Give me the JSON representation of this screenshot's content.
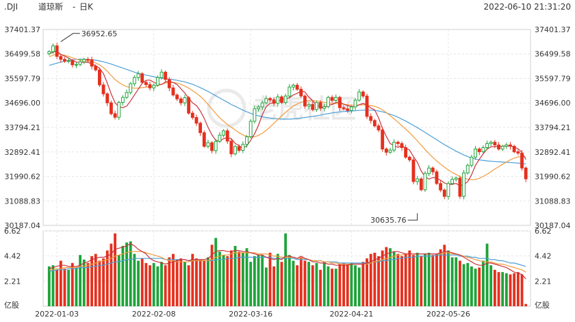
{
  "header": {
    "symbol": ".DJI",
    "name": "道琼斯",
    "period": "日K",
    "datetime": "2022-06-10 21:31:20"
  },
  "watermark": "老虎社区",
  "colors": {
    "up": "#1fa33a",
    "down": "#e5301e",
    "ma_short": "#c8323c",
    "ma_mid": "#f29a3a",
    "ma_long": "#4a9fd8"
  },
  "chart_data": {
    "type": "candlestick",
    "price_axis": {
      "ticks": [
        "37401.37",
        "36499.58",
        "35597.79",
        "34696.00",
        "33794.21",
        "32892.41",
        "31990.62",
        "31088.83",
        "30187.04"
      ],
      "min": 30187.04,
      "max": 37401.37
    },
    "volume_axis": {
      "ticks": [
        "6.62",
        "4.42",
        "2.21"
      ],
      "unit": "亿股",
      "min": 0,
      "max": 6.62
    },
    "x_ticks": [
      "2022-01-03",
      "2022-02-08",
      "2022-03-16",
      "2022-04-21",
      "2022-05-26"
    ],
    "annotations": [
      {
        "label": "36952.65",
        "index": 3,
        "value": 36952.65,
        "kind": "high"
      },
      {
        "label": "30635.76",
        "index": 95,
        "value": 30635.76,
        "kind": "low"
      }
    ],
    "close": [
      36585,
      36799,
      36410,
      36300,
      36230,
      36250,
      36100,
      36110,
      36210,
      36300,
      36290,
      36050,
      35911,
      35360,
      35030,
      34700,
      34300,
      34168,
      34717,
      34900,
      35080,
      35405,
      35630,
      35770,
      35455,
      35370,
      35250,
      35350,
      35630,
      35830,
      35560,
      35250,
      34988,
      34845,
      34700,
      34890,
      34320,
      34160,
      33950,
      33600,
      33100,
      33230,
      32940,
      33280,
      33510,
      33670,
      33290,
      32820,
      33090,
      32950,
      33170,
      33450,
      34020,
      34480,
      34550,
      34700,
      34860,
      34810,
      34680,
      34920,
      34710,
      34950,
      35280,
      35350,
      35200,
      34950,
      34580,
      34640,
      34450,
      34710,
      34500,
      34560,
      34900,
      34790,
      34900,
      34520,
      34480,
      34420,
      34550,
      34800,
      35100,
      34950,
      34200,
      34050,
      33850,
      33700,
      33000,
      32880,
      32960,
      33250,
      33200,
      33050,
      32700,
      32600,
      31800,
      31900,
      31500,
      32100,
      32300,
      32160,
      31730,
      31490,
      31253,
      31730,
      31880,
      31930,
      31260,
      32120,
      32400,
      32700,
      33000,
      32900,
      33050,
      33200,
      33250,
      33150,
      33000,
      33100,
      33150,
      33100,
      32900,
      32850,
      32300,
      31900
    ],
    "ma_short": [
      36500,
      36570,
      36600,
      36480,
      36420,
      36350,
      36260,
      36200,
      36185,
      36200,
      36190,
      36140,
      36070,
      35970,
      35780,
      35420,
      35030,
      34700,
      34560,
      34520,
      34580,
      34770,
      34990,
      35200,
      35420,
      35530,
      35540,
      35460,
      35390,
      35370,
      35470,
      35490,
      35450,
      35370,
      35220,
      35060,
      34870,
      34700,
      34600,
      34400,
      34130,
      33800,
      33520,
      33320,
      33280,
      33380,
      33420,
      33380,
      33210,
      33120,
      33030,
      33120,
      33320,
      33560,
      33870,
      34260,
      34560,
      34680,
      34700,
      34750,
      34820,
      34840,
      34890,
      34990,
      35050,
      35130,
      35100,
      34910,
      34780,
      34600,
      34560,
      34510,
      34610,
      34640,
      34710,
      34730,
      34650,
      34600,
      34560,
      34560,
      34630,
      34680,
      34620,
      34510,
      34440,
      34150,
      33760,
      33460,
      33200,
      33130,
      33060,
      33120,
      33040,
      32960,
      32720,
      32510,
      32190,
      31980,
      31890,
      31950,
      31930,
      31850,
      31750,
      31690,
      31700,
      31730,
      31650,
      31690,
      31800,
      32050,
      32400,
      32620,
      32820,
      33000,
      33080,
      33090,
      33100,
      33100,
      33120,
      33110,
      33070,
      33010,
      32880,
      32610
    ],
    "ma_mid": [
      36400,
      36450,
      36500,
      36480,
      36450,
      36410,
      36360,
      36310,
      36270,
      36250,
      36240,
      36210,
      36170,
      36100,
      36000,
      35860,
      35710,
      35560,
      35450,
      35360,
      35300,
      35260,
      35240,
      35240,
      35260,
      35280,
      35290,
      35310,
      35340,
      35380,
      35430,
      35450,
      35450,
      35430,
      35380,
      35320,
      35240,
      35150,
      35050,
      34940,
      34800,
      34640,
      34470,
      34300,
      34150,
      34020,
      33900,
      33800,
      33700,
      33600,
      33520,
      33460,
      33440,
      33450,
      33500,
      33580,
      33690,
      33810,
      33950,
      34080,
      34220,
      34350,
      34470,
      34580,
      34660,
      34720,
      34760,
      34780,
      34780,
      34770,
      34750,
      34720,
      34700,
      34680,
      34670,
      34660,
      34650,
      34630,
      34620,
      34610,
      34620,
      34630,
      34620,
      34600,
      34570,
      34520,
      34440,
      34340,
      34230,
      34110,
      33990,
      33860,
      33730,
      33600,
      33450,
      33300,
      33140,
      32980,
      32830,
      32690,
      32560,
      32440,
      32330,
      32230,
      32140,
      32060,
      31990,
      31930,
      31890,
      31870,
      31880,
      31920,
      31990,
      32070,
      32160,
      32260,
      32350,
      32440,
      32520,
      32600,
      32660,
      32710,
      32720,
      32700
    ],
    "ma_long": [
      36080,
      36120,
      36160,
      36200,
      36230,
      36260,
      36280,
      36300,
      36310,
      36310,
      36300,
      36290,
      36270,
      36240,
      36210,
      36170,
      36130,
      36080,
      36030,
      35980,
      35930,
      35880,
      35830,
      35790,
      35750,
      35720,
      35690,
      35660,
      35630,
      35610,
      35590,
      35570,
      35550,
      35530,
      35500,
      35470,
      35430,
      35380,
      35320,
      35260,
      35190,
      35120,
      35040,
      34960,
      34880,
      34800,
      34720,
      34640,
      34570,
      34500,
      34430,
      34370,
      34310,
      34260,
      34220,
      34190,
      34160,
      34140,
      34120,
      34110,
      34100,
      34100,
      34100,
      34110,
      34120,
      34140,
      34160,
      34180,
      34200,
      34220,
      34250,
      34280,
      34300,
      34330,
      34350,
      34370,
      34380,
      34390,
      34400,
      34410,
      34420,
      34430,
      34430,
      34430,
      34420,
      34400,
      34370,
      34330,
      34280,
      34230,
      34170,
      34100,
      34030,
      33950,
      33870,
      33790,
      33700,
      33610,
      33520,
      33430,
      33340,
      33250,
      33160,
      33080,
      33000,
      32920,
      32850,
      32780,
      32720,
      32670,
      32630,
      32600,
      32580,
      32560,
      32550,
      32540,
      32530,
      32520,
      32510,
      32500,
      32490,
      32480,
      32470,
      32450
    ],
    "volume": [
      3.5,
      3.6,
      3.2,
      4.0,
      3.3,
      3.2,
      3.8,
      3.4,
      4.5,
      4.1,
      3.8,
      4.4,
      4.6,
      4.0,
      4.2,
      4.9,
      5.5,
      6.4,
      4.5,
      5.3,
      5.6,
      5.7,
      4.6,
      4.0,
      4.2,
      3.8,
      3.6,
      3.8,
      3.5,
      3.9,
      3.6,
      4.3,
      4.6,
      4.1,
      4.2,
      3.9,
      3.6,
      4.6,
      4.2,
      4.1,
      4.0,
      4.3,
      5.4,
      6.0,
      4.8,
      4.5,
      4.4,
      4.9,
      5.3,
      4.8,
      4.7,
      5.1,
      3.9,
      4.4,
      4.5,
      4.5,
      3.4,
      4.7,
      3.5,
      4.6,
      3.9,
      6.4,
      4.5,
      4.0,
      3.6,
      4.3,
      4.0,
      3.9,
      3.6,
      3.8,
      3.2,
      3.9,
      3.5,
      3.3,
      3.3,
      3.7,
      3.8,
      3.7,
      3.8,
      3.6,
      3.4,
      3.9,
      4.2,
      4.6,
      4.7,
      4.4,
      4.9,
      5.2,
      5.1,
      4.8,
      4.6,
      4.4,
      4.6,
      4.9,
      4.5,
      4.7,
      4.4,
      4.6,
      4.7,
      4.5,
      4.6,
      5.0,
      5.4,
      4.9,
      4.3,
      4.3,
      4.0,
      3.7,
      3.8,
      3.5,
      3.3,
      3.4,
      4.0,
      5.5,
      3.6,
      3.2,
      3.0,
      3.0,
      2.9,
      2.8,
      2.9,
      3.0,
      2.8,
      0.2
    ],
    "vol_ma_short": [
      3.3,
      3.4,
      3.5,
      3.6,
      3.6,
      3.5,
      3.5,
      3.5,
      3.6,
      3.8,
      3.9,
      4.1,
      4.2,
      4.3,
      4.3,
      4.4,
      4.6,
      5.0,
      5.1,
      5.2,
      5.3,
      5.5,
      5.3,
      5.0,
      4.8,
      4.6,
      4.2,
      4.0,
      3.9,
      3.8,
      3.7,
      3.8,
      3.9,
      4.0,
      4.1,
      4.1,
      4.0,
      4.1,
      4.1,
      4.1,
      4.1,
      4.2,
      4.5,
      4.8,
      4.9,
      4.9,
      4.8,
      4.8,
      4.9,
      4.9,
      4.8,
      4.8,
      4.7,
      4.6,
      4.5,
      4.5,
      4.3,
      4.2,
      4.1,
      4.2,
      4.1,
      4.4,
      4.4,
      4.3,
      4.2,
      4.4,
      4.2,
      4.1,
      3.9,
      3.9,
      3.8,
      3.8,
      3.7,
      3.7,
      3.6,
      3.6,
      3.6,
      3.6,
      3.7,
      3.7,
      3.7,
      3.7,
      3.8,
      3.9,
      4.1,
      4.2,
      4.4,
      4.6,
      4.7,
      4.8,
      4.8,
      4.7,
      4.6,
      4.6,
      4.6,
      4.6,
      4.6,
      4.6,
      4.6,
      4.6,
      4.6,
      4.7,
      4.8,
      4.8,
      4.7,
      4.6,
      4.5,
      4.3,
      4.1,
      3.9,
      3.7,
      3.6,
      3.6,
      3.8,
      3.8,
      3.7,
      3.6,
      3.5,
      3.4,
      3.2,
      3.0,
      2.9,
      2.8,
      2.4
    ],
    "vol_ma_mid": [
      3.2,
      3.2,
      3.3,
      3.3,
      3.4,
      3.4,
      3.4,
      3.4,
      3.5,
      3.5,
      3.6,
      3.7,
      3.8,
      3.9,
      4.0,
      4.1,
      4.2,
      4.4,
      4.5,
      4.6,
      4.7,
      4.8,
      4.8,
      4.8,
      4.8,
      4.7,
      4.6,
      4.5,
      4.4,
      4.3,
      4.1,
      4.0,
      4.0,
      3.9,
      3.9,
      3.9,
      3.9,
      4.0,
      4.0,
      4.0,
      4.0,
      4.0,
      4.1,
      4.3,
      4.4,
      4.5,
      4.5,
      4.6,
      4.7,
      4.7,
      4.7,
      4.7,
      4.7,
      4.7,
      4.6,
      4.6,
      4.6,
      4.5,
      4.4,
      4.4,
      4.3,
      4.3,
      4.3,
      4.3,
      4.2,
      4.2,
      4.2,
      4.1,
      4.0,
      4.0,
      4.0,
      3.9,
      3.9,
      3.8,
      3.8,
      3.7,
      3.7,
      3.7,
      3.7,
      3.7,
      3.7,
      3.7,
      3.7,
      3.8,
      3.9,
      4.0,
      4.1,
      4.2,
      4.3,
      4.4,
      4.5,
      4.5,
      4.6,
      4.6,
      4.6,
      4.6,
      4.6,
      4.6,
      4.6,
      4.6,
      4.6,
      4.6,
      4.7,
      4.7,
      4.6,
      4.6,
      4.5,
      4.4,
      4.3,
      4.2,
      4.1,
      4.0,
      3.9,
      3.9,
      3.9,
      3.8,
      3.7,
      3.7,
      3.6,
      3.5,
      3.4,
      3.3,
      3.2,
      3.0
    ],
    "vol_ma_long": [
      3.1,
      3.1,
      3.2,
      3.2,
      3.2,
      3.3,
      3.3,
      3.3,
      3.4,
      3.4,
      3.4,
      3.5,
      3.5,
      3.6,
      3.6,
      3.7,
      3.8,
      3.9,
      3.9,
      4.0,
      4.1,
      4.1,
      4.2,
      4.2,
      4.2,
      4.2,
      4.2,
      4.2,
      4.2,
      4.2,
      4.1,
      4.1,
      4.1,
      4.1,
      4.1,
      4.1,
      4.0,
      4.0,
      4.0,
      4.0,
      4.0,
      4.0,
      4.0,
      4.1,
      4.1,
      4.1,
      4.2,
      4.2,
      4.2,
      4.3,
      4.3,
      4.3,
      4.3,
      4.3,
      4.3,
      4.3,
      4.3,
      4.3,
      4.2,
      4.2,
      4.2,
      4.2,
      4.2,
      4.2,
      4.1,
      4.1,
      4.1,
      4.1,
      4.0,
      4.0,
      4.0,
      3.9,
      3.9,
      3.9,
      3.9,
      3.8,
      3.8,
      3.8,
      3.8,
      3.8,
      3.8,
      3.8,
      3.8,
      3.8,
      3.9,
      3.9,
      4.0,
      4.0,
      4.1,
      4.1,
      4.2,
      4.2,
      4.3,
      4.3,
      4.3,
      4.4,
      4.4,
      4.4,
      4.4,
      4.4,
      4.5,
      4.5,
      4.5,
      4.5,
      4.5,
      4.5,
      4.4,
      4.4,
      4.4,
      4.3,
      4.3,
      4.2,
      4.2,
      4.2,
      4.1,
      4.1,
      4.0,
      4.0,
      3.9,
      3.8,
      3.8,
      3.7,
      3.6,
      3.5
    ]
  }
}
